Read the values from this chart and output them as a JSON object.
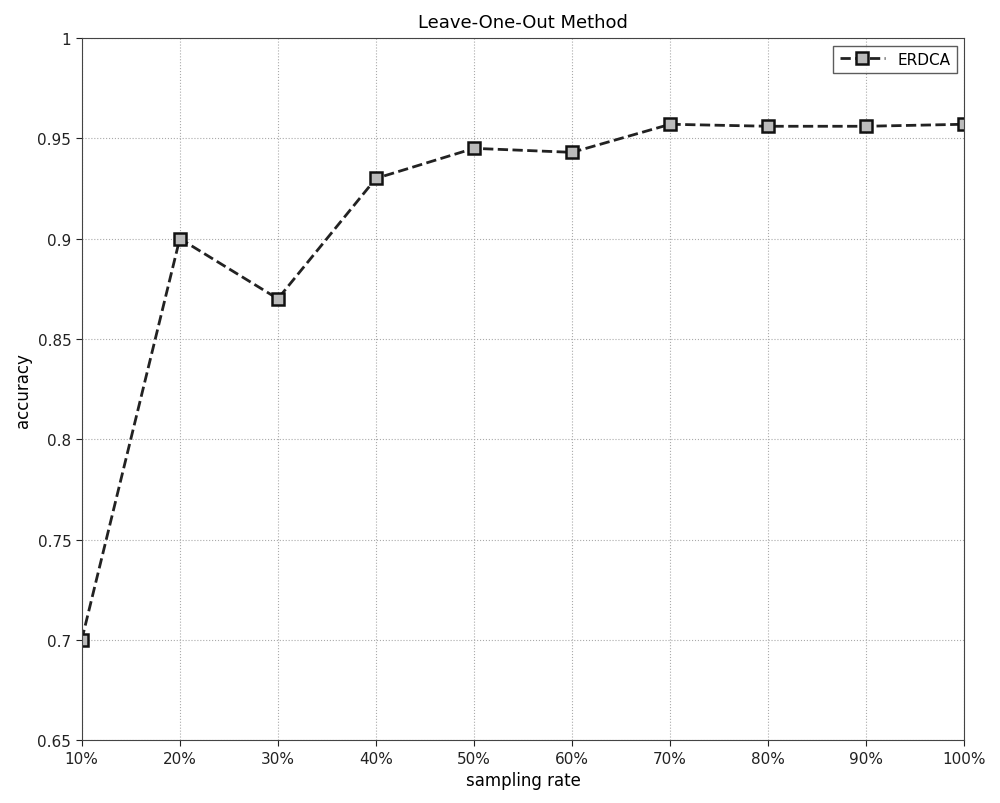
{
  "x": [
    10,
    20,
    30,
    40,
    50,
    60,
    70,
    80,
    90,
    100
  ],
  "y": [
    0.7,
    0.9,
    0.87,
    0.93,
    0.945,
    0.943,
    0.957,
    0.956,
    0.956,
    0.957
  ],
  "x_labels": [
    "10%",
    "20%",
    "30%",
    "40%",
    "50%",
    "60%",
    "70%",
    "80%",
    "90%",
    "100%"
  ],
  "title": "Leave-One-Out Method",
  "xlabel": "sampling rate",
  "ylabel": "accuracy",
  "ylim": [
    0.65,
    1.0
  ],
  "xlim": [
    10,
    100
  ],
  "line_color": "#222222",
  "marker": "s",
  "marker_facecolor": "#bbbbbb",
  "marker_edgecolor": "#111111",
  "marker_size": 9,
  "line_style": "--",
  "line_width": 2.0,
  "legend_label": "ERDCA",
  "grid_color": "#aaaaaa",
  "background_color": "#ffffff",
  "title_fontsize": 13,
  "label_fontsize": 12,
  "tick_fontsize": 11,
  "y_ticks": [
    0.65,
    0.7,
    0.75,
    0.8,
    0.85,
    0.9,
    0.95,
    1.0
  ],
  "y_tick_labels": [
    "0.65",
    "0.7",
    "0.75",
    "0.8",
    "0.85",
    "0.9",
    "0.95",
    "1"
  ]
}
